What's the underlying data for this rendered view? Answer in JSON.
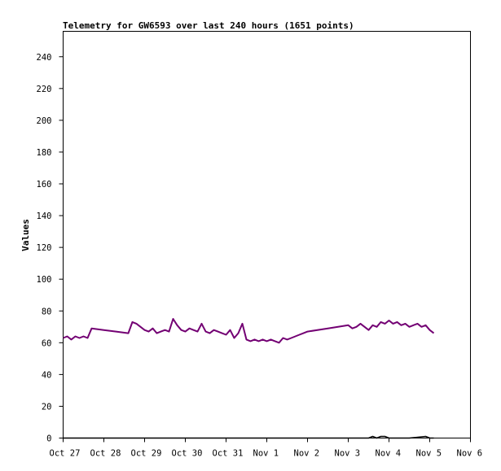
{
  "chart_data": {
    "type": "line",
    "title": "Telemetry for GW6593 over last 240 hours (1651 points)",
    "xlabel": "",
    "ylabel": "Values",
    "x_tick_labels": [
      "Oct 27",
      "Oct 28",
      "Oct 29",
      "Oct 30",
      "Oct 31",
      "Nov 1",
      "Nov 2",
      "Nov 3",
      "Nov 4",
      "Nov 5",
      "Nov 6"
    ],
    "y_ticks": [
      0,
      20,
      40,
      60,
      80,
      100,
      120,
      140,
      160,
      180,
      200,
      220,
      240
    ],
    "ylim": [
      0,
      256
    ],
    "xlim_days": [
      0,
      10
    ],
    "grid": false,
    "legend": "none",
    "series": [
      {
        "color": "#730073",
        "x_days": [
          0.0,
          0.1,
          0.2,
          0.3,
          0.4,
          0.5,
          0.6,
          0.7,
          1.0,
          1.3,
          1.6,
          1.7,
          1.8,
          1.9,
          2.0,
          2.1,
          2.2,
          2.3,
          2.4,
          2.5,
          2.6,
          2.7,
          2.8,
          2.9,
          3.0,
          3.1,
          3.2,
          3.3,
          3.4,
          3.5,
          3.6,
          3.7,
          3.8,
          3.9,
          4.0,
          4.1,
          4.2,
          4.3,
          4.4,
          4.5,
          4.6,
          4.7,
          4.8,
          4.9,
          5.0,
          5.1,
          5.2,
          5.3,
          5.4,
          5.5,
          5.6,
          5.7,
          5.8,
          5.9,
          6.0,
          6.5,
          7.0,
          7.1,
          7.2,
          7.3,
          7.4,
          7.5,
          7.6,
          7.7,
          7.8,
          7.9,
          8.0,
          8.1,
          8.2,
          8.3,
          8.4,
          8.5,
          8.6,
          8.7,
          8.8,
          8.9,
          9.0,
          9.1
        ],
        "y": [
          63,
          64,
          62,
          64,
          63,
          64,
          63,
          69,
          68,
          67,
          66,
          73,
          72,
          70,
          68,
          67,
          69,
          66,
          67,
          68,
          67,
          75,
          71,
          68,
          67,
          69,
          68,
          67,
          72,
          67,
          66,
          68,
          67,
          66,
          65,
          68,
          63,
          66,
          72,
          62,
          61,
          62,
          61,
          62,
          61,
          62,
          61,
          60,
          63,
          62,
          63,
          64,
          65,
          66,
          67,
          69,
          71,
          69,
          70,
          72,
          70,
          68,
          71,
          70,
          73,
          72,
          74,
          72,
          73,
          71,
          72,
          70,
          71,
          72,
          70,
          71,
          68,
          66
        ]
      },
      {
        "color": "#000000",
        "x_days": [
          0.0,
          7.5,
          7.6,
          7.7,
          7.8,
          7.9,
          8.0,
          8.5,
          8.9,
          9.0,
          9.1
        ],
        "y": [
          0,
          0,
          1,
          0,
          1,
          1,
          0,
          0,
          1,
          0,
          0
        ]
      }
    ]
  }
}
